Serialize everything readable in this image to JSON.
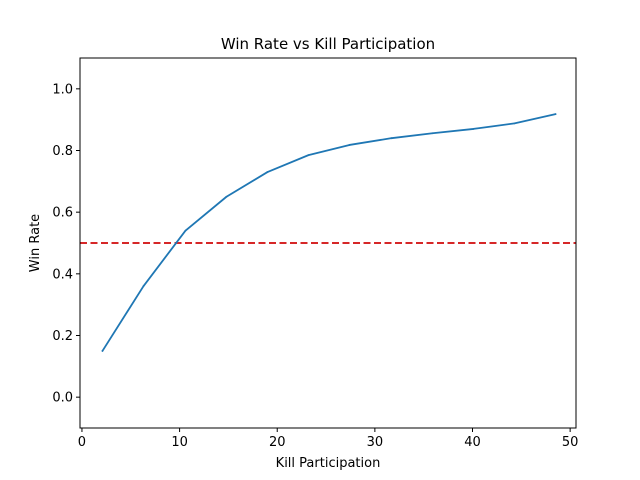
{
  "chart_data": {
    "type": "line",
    "title": "Win Rate vs Kill Participation",
    "xlabel": "Kill Participation",
    "ylabel": "Win Rate",
    "xlim": [
      -0.2,
      50.6
    ],
    "ylim": [
      -0.1,
      1.1
    ],
    "xticks": [
      0,
      10,
      20,
      30,
      40,
      50
    ],
    "yticks": [
      0.0,
      0.2,
      0.4,
      0.6,
      0.8,
      1.0
    ],
    "xtick_labels": [
      "0",
      "10",
      "20",
      "30",
      "40",
      "50"
    ],
    "ytick_labels": [
      "0.0",
      "0.2",
      "0.4",
      "0.6",
      "0.8",
      "1.0"
    ],
    "grid": false,
    "series": [
      {
        "color": "#1f77b4",
        "x": [
          2.1,
          6.3,
          10.6,
          14.8,
          19.0,
          23.2,
          27.4,
          31.7,
          35.9,
          40.1,
          44.3,
          48.5
        ],
        "y": [
          0.15,
          0.36,
          0.54,
          0.65,
          0.73,
          0.785,
          0.818,
          0.84,
          0.856,
          0.87,
          0.888,
          0.918
        ]
      }
    ],
    "reference_line": {
      "orientation": "horizontal",
      "y": 0.5,
      "color": "#d62728",
      "style": "dashed"
    }
  }
}
